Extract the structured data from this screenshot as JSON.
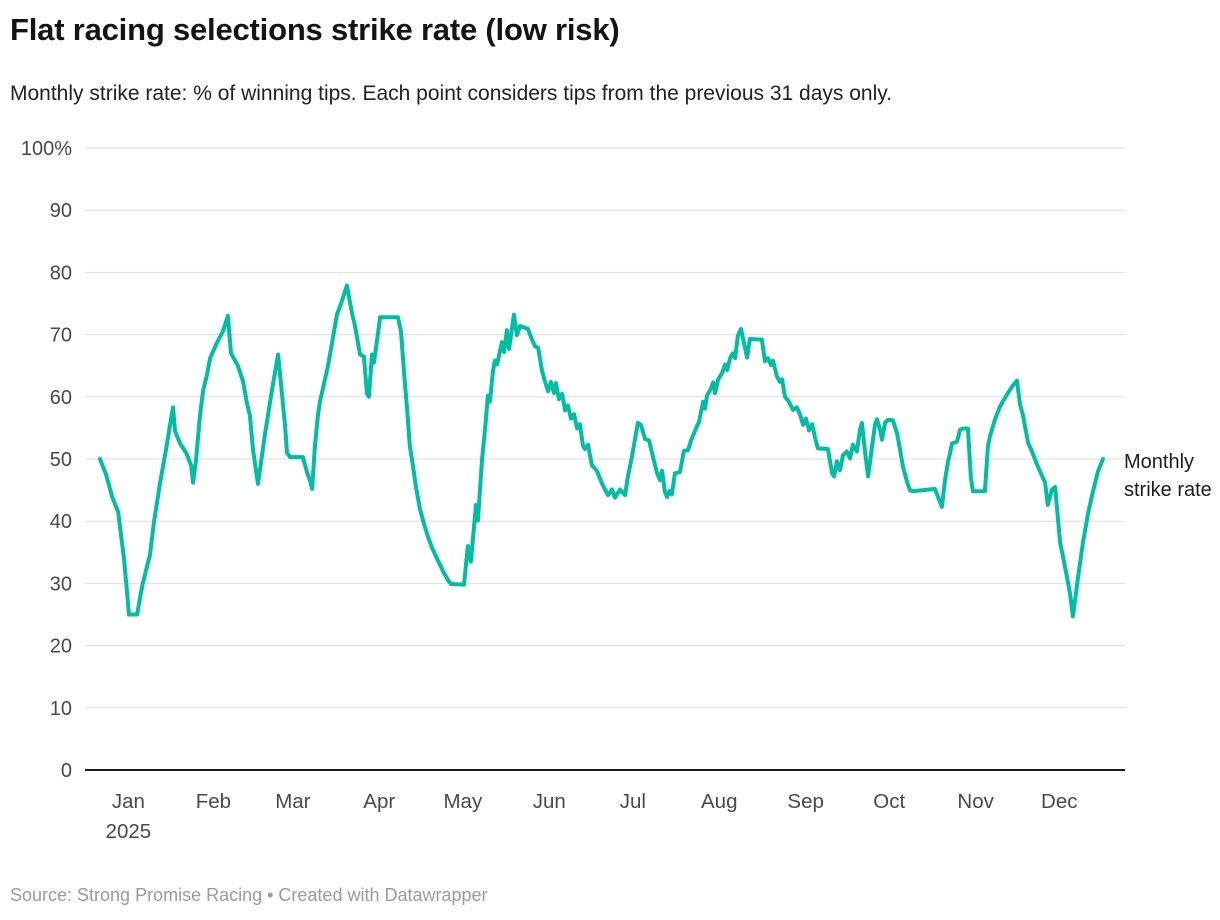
{
  "header": {
    "title": "Flat racing selections strike rate (low risk)",
    "subtitle": "Monthly strike rate: % of winning tips. Each point considers tips from the previous 31 days only."
  },
  "footer": {
    "source_text": "Source: Strong Promise Racing • Created with Datawrapper"
  },
  "chart_data": {
    "type": "line",
    "title": "Flat racing selections strike rate (low risk)",
    "xlabel": "",
    "ylabel": "",
    "ylim": [
      0,
      100
    ],
    "grid": "horizontal",
    "legend_position": "right-inline-label",
    "y_axis": {
      "ticks": [
        0,
        10,
        20,
        30,
        40,
        50,
        60,
        70,
        80,
        90,
        100
      ],
      "tick_labels": [
        "0",
        "10",
        "20",
        "30",
        "40",
        "50",
        "60",
        "70",
        "80",
        "90",
        "100%"
      ]
    },
    "x_axis": {
      "unit": "day-of-year 2025",
      "year_label": "2025",
      "months": [
        {
          "label": "Jan",
          "mid_day": 14.5
        },
        {
          "label": "Feb",
          "mid_day": 45.0
        },
        {
          "label": "Mar",
          "mid_day": 73.5
        },
        {
          "label": "Apr",
          "mid_day": 104.5
        },
        {
          "label": "May",
          "mid_day": 134.5
        },
        {
          "label": "Jun",
          "mid_day": 165.5
        },
        {
          "label": "Jul",
          "mid_day": 195.5
        },
        {
          "label": "Aug",
          "mid_day": 226.5
        },
        {
          "label": "Sep",
          "mid_day": 257.5
        },
        {
          "label": "Oct",
          "mid_day": 287.5
        },
        {
          "label": "Nov",
          "mid_day": 318.5
        },
        {
          "label": "Dec",
          "mid_day": 348.5
        }
      ]
    },
    "series": [
      {
        "name": "Monthly strike rate",
        "color": "#00bda4",
        "points": [
          [
            4.3,
            50
          ],
          [
            6.5,
            47.5
          ],
          [
            8.6,
            44
          ],
          [
            10.8,
            41.5
          ],
          [
            12.9,
            34
          ],
          [
            14.7,
            25
          ],
          [
            17.6,
            25
          ],
          [
            19.4,
            29.5
          ],
          [
            21.5,
            33.3
          ],
          [
            22.2,
            34.5
          ],
          [
            23.7,
            40
          ],
          [
            25.8,
            46
          ],
          [
            28,
            51.5
          ],
          [
            29.8,
            56.5
          ],
          [
            30.5,
            58.3
          ],
          [
            31.2,
            54.5
          ],
          [
            33,
            52.5
          ],
          [
            35.2,
            51
          ],
          [
            37,
            49
          ],
          [
            37.7,
            46.2
          ],
          [
            38.8,
            50
          ],
          [
            40.2,
            57
          ],
          [
            41.3,
            61
          ],
          [
            42.7,
            63.5
          ],
          [
            43.8,
            66.2
          ],
          [
            46.3,
            68.7
          ],
          [
            48.4,
            70.5
          ],
          [
            50.2,
            73
          ],
          [
            51.3,
            67
          ],
          [
            53.8,
            65
          ],
          [
            55.6,
            62.5
          ],
          [
            57,
            59
          ],
          [
            58.1,
            57
          ],
          [
            59.2,
            51.5
          ],
          [
            61,
            46
          ],
          [
            63.5,
            54
          ],
          [
            66,
            61
          ],
          [
            68.2,
            66.8
          ],
          [
            70.7,
            55.5
          ],
          [
            71.4,
            51
          ],
          [
            72.5,
            50.3
          ],
          [
            77.1,
            50.3
          ],
          [
            78.6,
            47.8
          ],
          [
            79.7,
            46.5
          ],
          [
            80.4,
            45.2
          ],
          [
            81.4,
            52
          ],
          [
            82.5,
            57
          ],
          [
            83.2,
            59.2
          ],
          [
            84.3,
            61.3
          ],
          [
            86.1,
            65
          ],
          [
            87.5,
            68.5
          ],
          [
            89.3,
            73.2
          ],
          [
            90.8,
            75
          ],
          [
            92.9,
            77.9
          ],
          [
            94.7,
            73.5
          ],
          [
            95.8,
            71.4
          ],
          [
            97.6,
            66.8
          ],
          [
            99,
            66.5
          ],
          [
            100.1,
            60.5
          ],
          [
            100.8,
            60
          ],
          [
            101.9,
            66.8
          ],
          [
            102.6,
            65.5
          ],
          [
            103.7,
            69
          ],
          [
            104.8,
            72.8
          ],
          [
            111.2,
            72.8
          ],
          [
            112.3,
            70.5
          ],
          [
            113.4,
            64
          ],
          [
            114.5,
            58
          ],
          [
            115.5,
            52
          ],
          [
            116.3,
            49.8
          ],
          [
            117.7,
            45.5
          ],
          [
            119.1,
            42
          ],
          [
            120.6,
            39.5
          ],
          [
            122,
            37.5
          ],
          [
            123.4,
            35.8
          ],
          [
            124.9,
            34.3
          ],
          [
            126.3,
            33
          ],
          [
            127.7,
            31.7
          ],
          [
            129.2,
            30.5
          ],
          [
            130.2,
            29.9
          ],
          [
            134.9,
            29.8
          ],
          [
            136.3,
            36
          ],
          [
            137.4,
            33.5
          ],
          [
            139.2,
            42.6
          ],
          [
            139.9,
            40.1
          ],
          [
            141.4,
            50
          ],
          [
            142.4,
            54.5
          ],
          [
            143.5,
            60.2
          ],
          [
            144.2,
            59.2
          ],
          [
            145.3,
            64.2
          ],
          [
            146,
            65.8
          ],
          [
            146.8,
            65.2
          ],
          [
            148.5,
            68.8
          ],
          [
            149.3,
            67.2
          ],
          [
            150.3,
            70.7
          ],
          [
            151.1,
            67.7
          ],
          [
            152.8,
            73.2
          ],
          [
            153.9,
            69.9
          ],
          [
            155,
            71.4
          ],
          [
            157.9,
            70.9
          ],
          [
            158.6,
            70
          ],
          [
            160.4,
            68.1
          ],
          [
            161.5,
            67.9
          ],
          [
            162.9,
            64.2
          ],
          [
            164,
            62.4
          ],
          [
            165.1,
            60.9
          ],
          [
            166.1,
            62.4
          ],
          [
            167.2,
            60.6
          ],
          [
            167.9,
            62.2
          ],
          [
            169,
            59.6
          ],
          [
            170.1,
            60.5
          ],
          [
            171.2,
            57.8
          ],
          [
            172.2,
            58.6
          ],
          [
            173.3,
            56.5
          ],
          [
            174.4,
            57.2
          ],
          [
            175.5,
            54.9
          ],
          [
            176.5,
            55.6
          ],
          [
            177.6,
            52.1
          ],
          [
            178.3,
            51.6
          ],
          [
            179.4,
            52.3
          ],
          [
            180.8,
            49
          ],
          [
            182.6,
            48.1
          ],
          [
            184.4,
            46.1
          ],
          [
            185.5,
            45.1
          ],
          [
            186.6,
            44.2
          ],
          [
            188,
            45.1
          ],
          [
            189.1,
            43.8
          ],
          [
            190.9,
            45.1
          ],
          [
            192.7,
            44.2
          ],
          [
            193.7,
            47.1
          ],
          [
            195.2,
            50.4
          ],
          [
            196.3,
            53.3
          ],
          [
            197.3,
            55.8
          ],
          [
            198.4,
            55.5
          ],
          [
            199.9,
            53.2
          ],
          [
            201.3,
            53
          ],
          [
            202.7,
            50.4
          ],
          [
            204.2,
            47.7
          ],
          [
            205.2,
            46.6
          ],
          [
            206,
            48.1
          ],
          [
            207,
            44.7
          ],
          [
            207.8,
            43.9
          ],
          [
            208.8,
            44.9
          ],
          [
            209.5,
            44.3
          ],
          [
            210.6,
            47.7
          ],
          [
            212.4,
            47.9
          ],
          [
            213.8,
            51.3
          ],
          [
            215.3,
            51.4
          ],
          [
            216.4,
            53
          ],
          [
            218.5,
            55.3
          ],
          [
            219.2,
            55.9
          ],
          [
            220.7,
            59.2
          ],
          [
            221.4,
            58.1
          ],
          [
            222.1,
            60.2
          ],
          [
            223.5,
            61.3
          ],
          [
            224.3,
            62.3
          ],
          [
            225,
            60.6
          ],
          [
            226.1,
            62.8
          ],
          [
            227.5,
            63.8
          ],
          [
            228.6,
            65.2
          ],
          [
            229.3,
            64.3
          ],
          [
            230.4,
            66.2
          ],
          [
            231.4,
            67
          ],
          [
            232.2,
            66.2
          ],
          [
            233.2,
            69.8
          ],
          [
            234.3,
            70.9
          ],
          [
            236.5,
            66.3
          ],
          [
            237.5,
            69.3
          ],
          [
            241.8,
            69.2
          ],
          [
            242.9,
            65.7
          ],
          [
            244,
            66.2
          ],
          [
            245.1,
            65.1
          ],
          [
            245.8,
            65.8
          ],
          [
            247.2,
            63.3
          ],
          [
            248.3,
            62.4
          ],
          [
            249,
            62.8
          ],
          [
            250.1,
            60
          ],
          [
            251.2,
            59.4
          ],
          [
            253,
            57.9
          ],
          [
            254.4,
            58.3
          ],
          [
            255.5,
            57.1
          ],
          [
            256.6,
            55.5
          ],
          [
            257.6,
            56.5
          ],
          [
            258.7,
            54.6
          ],
          [
            259.8,
            55.6
          ],
          [
            260.9,
            53.4
          ],
          [
            261.9,
            51.7
          ],
          [
            265.5,
            51.6
          ],
          [
            267,
            47.7
          ],
          [
            267.7,
            47.2
          ],
          [
            268.7,
            49.6
          ],
          [
            269.8,
            48.2
          ],
          [
            270.9,
            50.6
          ],
          [
            272.3,
            51.2
          ],
          [
            273.4,
            50.1
          ],
          [
            274.5,
            52.3
          ],
          [
            275.9,
            51.2
          ],
          [
            277,
            54.7
          ],
          [
            277.7,
            55.8
          ],
          [
            278.8,
            51.2
          ],
          [
            279.9,
            47.2
          ],
          [
            281.3,
            52
          ],
          [
            282.4,
            55.5
          ],
          [
            283.1,
            56.4
          ],
          [
            284.2,
            54.7
          ],
          [
            284.9,
            53.1
          ],
          [
            286,
            55.8
          ],
          [
            287,
            56.3
          ],
          [
            288.8,
            56.2
          ],
          [
            290.3,
            54.1
          ],
          [
            291.4,
            51.5
          ],
          [
            292.4,
            48.8
          ],
          [
            293.9,
            46.3
          ],
          [
            294.9,
            45
          ],
          [
            296,
            44.8
          ],
          [
            303.9,
            45.2
          ],
          [
            305,
            43.9
          ],
          [
            306.4,
            42.3
          ],
          [
            307.5,
            46.6
          ],
          [
            308.6,
            49.6
          ],
          [
            309.3,
            50.9
          ],
          [
            310,
            52.5
          ],
          [
            311.8,
            52.8
          ],
          [
            312.9,
            54.7
          ],
          [
            314,
            54.9
          ],
          [
            315.7,
            54.9
          ],
          [
            316.8,
            47
          ],
          [
            317.5,
            44.8
          ],
          [
            321.8,
            44.8
          ],
          [
            322.9,
            52
          ],
          [
            323.6,
            53.6
          ],
          [
            325.4,
            56.3
          ],
          [
            327.2,
            58.4
          ],
          [
            329,
            59.8
          ],
          [
            331.5,
            61.6
          ],
          [
            333.3,
            62.6
          ],
          [
            334.4,
            58.8
          ],
          [
            335.5,
            57
          ],
          [
            337.3,
            52.6
          ],
          [
            338.7,
            51.2
          ],
          [
            340.5,
            49.1
          ],
          [
            342.3,
            47.3
          ],
          [
            343.4,
            46.2
          ],
          [
            344.4,
            42.6
          ],
          [
            345.9,
            45.1
          ],
          [
            347,
            45.5
          ],
          [
            348.8,
            36.6
          ],
          [
            350.6,
            32.6
          ],
          [
            352.4,
            28.3
          ],
          [
            353.4,
            24.7
          ],
          [
            355.2,
            30.8
          ],
          [
            357,
            36.6
          ],
          [
            358.8,
            41.2
          ],
          [
            360.6,
            44.8
          ],
          [
            362.4,
            48
          ],
          [
            364.2,
            50
          ]
        ]
      }
    ],
    "colors": {
      "line": "#00bda4",
      "grid": "#dddddd",
      "baseline": "#1a1a1a",
      "tick_text": "#494949",
      "footer_text": "#9b9b9b"
    }
  }
}
